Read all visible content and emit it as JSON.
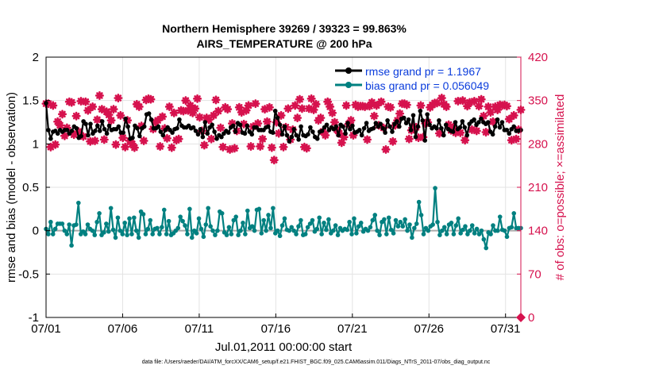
{
  "chart_data": {
    "type": "line",
    "title_line1": "Northern Hemisphere 39269 / 39323 = 99.863%",
    "title_line2": "AIRS_TEMPERATURE @ 200 hPa",
    "xlabel": "Jul.01,2011 00:00:00 start",
    "ylabel_left": "rmse and bias (model - observation)",
    "ylabel_right": "# of obs: o=possible; ×=assimilated",
    "x_tick_labels": [
      "07/01",
      "07/06",
      "07/11",
      "07/16",
      "07/21",
      "07/26",
      "07/31"
    ],
    "y_left_ticks": [
      "2",
      "1.5",
      "1",
      "0.5",
      "0",
      "-0.5",
      "-1"
    ],
    "y_right_ticks": [
      "420",
      "350",
      "280",
      "210",
      "140",
      "70",
      "0"
    ],
    "y_left_range": [
      -1,
      2
    ],
    "y_right_range": [
      0,
      420
    ],
    "x_range_days": [
      0,
      31
    ],
    "zero_line": 0,
    "series": [
      {
        "name": "rmse",
        "legend_label": "rmse grand pr = 1.1967",
        "color": "#000000",
        "values": [
          1.47,
          1.16,
          1.06,
          1.14,
          1.15,
          1.12,
          1.16,
          1.14,
          1.16,
          1.16,
          1.12,
          1.15,
          1.2,
          1.18,
          1.07,
          1.09,
          1.26,
          1.23,
          1.1,
          1.23,
          1.12,
          1.15,
          1.21,
          1.15,
          1.26,
          1.17,
          1.12,
          1.21,
          1.16,
          1.17,
          1.17,
          1.2,
          1.13,
          1.13,
          1.29,
          1.2,
          1.06,
          1.07,
          1.21,
          1.18,
          1.09,
          1.18,
          1.2,
          1.34,
          1.35,
          1.28,
          1.18,
          1.18,
          1.2,
          1.14,
          1.1,
          1.16,
          1.19,
          1.16,
          1.13,
          1.17,
          1.18,
          1.28,
          1.21,
          1.19,
          1.19,
          1.21,
          1.18,
          1.19,
          1.15,
          1.11,
          1.17,
          1.08,
          1.25,
          1.12,
          1.19,
          1.22,
          1.14,
          1.06,
          1.1,
          1.08,
          1.12,
          1.15,
          1.13,
          1.19,
          1.21,
          1.14,
          1.24,
          1.22,
          1.13,
          1.12,
          1.21,
          1.14,
          1.11,
          1.19,
          1.19,
          1.16,
          1.16,
          1.16,
          1.19,
          1.2,
          1.14,
          1.13,
          1.38,
          1.3,
          1.22,
          1.11,
          1.2,
          1.1,
          1.03,
          1.08,
          1.17,
          1.1,
          1.05,
          1.2,
          1.1,
          1.09,
          1.11,
          1.19,
          1.14,
          1.08,
          1.06,
          1.14,
          1.15,
          1.19,
          1.22,
          1.16,
          1.19,
          1.17,
          1.2,
          1.1,
          1.22,
          1.2,
          1.12,
          1.24,
          1.17,
          1.21,
          1.13,
          1.14,
          1.16,
          1.1,
          1.18,
          1.24,
          1.15,
          1.17,
          1.18,
          1.24,
          1.2,
          1.23,
          1.18,
          1.13,
          1.27,
          1.2,
          1.14,
          1.23,
          1.26,
          1.2,
          1.29,
          1.3,
          1.24,
          1.28,
          1.16,
          1.33,
          1.08,
          1.2,
          1.38,
          1.27,
          1.04,
          1.34,
          1.22,
          1.18,
          1.2,
          1.18,
          1.27,
          1.18,
          1.1,
          1.22,
          1.17,
          1.15,
          1.14,
          1.25,
          1.17,
          1.19,
          1.26,
          1.19,
          1.1,
          1.23,
          1.26,
          1.28,
          1.22,
          1.25,
          1.29,
          1.25,
          1.23,
          1.25,
          1.14,
          1.11,
          1.2,
          1.28,
          1.19,
          1.25,
          1.16,
          1.16,
          1.12,
          1.17,
          1.2,
          1.15,
          1.15,
          1.16
        ]
      },
      {
        "name": "bias",
        "legend_label": "bias grand pr = 0.056049",
        "color": "#008080",
        "values": [
          0.02,
          -0.04,
          0.1,
          -0.04,
          0.02,
          0.08,
          0.08,
          0.08,
          0.0,
          -0.04,
          0.07,
          -0.17,
          0.06,
          0.07,
          0.32,
          -0.04,
          -0.01,
          -0.04,
          0.07,
          0.02,
          0.0,
          -0.05,
          0.1,
          0.2,
          -0.05,
          -0.02,
          0.08,
          -0.01,
          0.26,
          0.01,
          -0.08,
          0.15,
          0.0,
          -0.04,
          0.09,
          -0.05,
          0.14,
          -0.04,
          0.15,
          0.0,
          -0.08,
          0.22,
          0.19,
          -0.04,
          0.02,
          0.12,
          -0.04,
          0.02,
          0.03,
          -0.04,
          0.04,
          0.24,
          -0.04,
          0.11,
          -0.05,
          -0.03,
          0.0,
          0.03,
          0.16,
          0.11,
          0.06,
          -0.04,
          0.25,
          -0.08,
          0.0,
          -0.03,
          0.14,
          0.02,
          -0.07,
          0.07,
          0.26,
          0.05,
          0.0,
          -0.05,
          0.0,
          0.22,
          0.2,
          -0.02,
          -0.05,
          0.04,
          -0.04,
          0.12,
          0.16,
          -0.05,
          0.0,
          0.09,
          -0.04,
          0.23,
          0.03,
          0.05,
          0.0,
          0.24,
          0.25,
          -0.03,
          0.12,
          0.0,
          0.18,
          0.03,
          0.26,
          -0.03,
          0.0,
          -0.06,
          0.06,
          0.14,
          0.01,
          0.0,
          0.04,
          0.0,
          -0.04,
          0.05,
          0.12,
          -0.05,
          -0.04,
          0.04,
          0.08,
          0.12,
          -0.01,
          0.02,
          0.15,
          -0.04,
          0.09,
          0.01,
          0.13,
          -0.03,
          0.0,
          0.06,
          -0.05,
          0.03,
          0.0,
          0.02,
          0.01,
          0.1,
          -0.04,
          0.14,
          -0.03,
          0.05,
          0.09,
          -0.01,
          0.02,
          0.0,
          0.04,
          0.12,
          0.18,
          0.0,
          -0.05,
          0.1,
          0.13,
          -0.04,
          0.15,
          0.01,
          -0.03,
          0.12,
          0.05,
          0.1,
          0.05,
          0.13,
          0.0,
          0.07,
          -0.08,
          0.03,
          0.08,
          0.33,
          0.18,
          -0.04,
          0.03,
          0.0,
          0.05,
          0.07,
          0.49,
          0.1,
          -0.05,
          0.0,
          0.04,
          -0.04,
          0.07,
          0.09,
          -0.04,
          0.06,
          0.14,
          -0.03,
          0.01,
          0.05,
          -0.04,
          0.0,
          0.06,
          -0.03,
          0.02,
          -0.04,
          0.0,
          -0.1,
          -0.2,
          -0.02,
          -0.04,
          0.06,
          0.0,
          0.0,
          0.16,
          0.01,
          0.0,
          -0.07,
          0.03,
          0.04,
          0.2,
          0.03,
          0.03,
          0.03
        ]
      },
      {
        "name": "# of obs possible/assimilated",
        "axis": "right",
        "color": "#d6124e",
        "marker": "star",
        "values": [
          345,
          345,
          275,
          342,
          279,
          316,
          310,
          328,
          293,
          306,
          348,
          347,
          295,
          325,
          300,
          349,
          292,
          348,
          334,
          284,
          340,
          285,
          319,
          358,
          336,
          287,
          332,
          327,
          318,
          336,
          279,
          354,
          326,
          290,
          275,
          318,
          285,
          280,
          274,
          344,
          340,
          309,
          285,
          351,
          353,
          352,
          304,
          315,
          318,
          276,
          324,
          305,
          289,
          340,
          274,
          330,
          286,
          288,
          334,
          333,
          350,
          334,
          342,
          330,
          337,
          353,
          323,
          301,
          278,
          322,
          319,
          288,
          326,
          351,
          333,
          306,
          275,
          339,
          336,
          271,
          313,
          273,
          301,
          339,
          331,
          312,
          334,
          342,
          276,
          308,
          345,
          313,
          276,
          288,
          336,
          316,
          339,
          274,
          254,
          315,
          297,
          326,
          275,
          307,
          337,
          287,
          303,
          342,
          322,
          352,
          337,
          275,
          273,
          337,
          353,
          335,
          344,
          318,
          322,
          300,
          294,
          348,
          340,
          330,
          315,
          303,
          297,
          282,
          291,
          342,
          312,
          318,
          294,
          343,
          340,
          341,
          341,
          340,
          287,
          341,
          347,
          325,
          342,
          310,
          348,
          306,
          271,
          340,
          339,
          284,
          310,
          318,
          329,
          345,
          345,
          343,
          288,
          302,
          308,
          307,
          290,
          342,
          291,
          313,
          315,
          339,
          343,
          346,
          346,
          297,
          354,
          344,
          340,
          311,
          302,
          307,
          298,
          349,
          298,
          350,
          286,
          341,
          347,
          303,
          349,
          301,
          341,
          352,
          325,
          299,
          340,
          331,
          316,
          340,
          335,
          343,
          342,
          343,
          341,
          320,
          286,
          326,
          288,
          303,
          335
        ]
      }
    ]
  },
  "footnote": "data file: /Users/raeder/DAI/ATM_forcXX/CAM6_setup/f.e21.FHIST_BGC.f09_025.CAM6assim.011/Diags_NTrS_2011-07/obs_diag_output.nc",
  "colors": {
    "rmse": "#000000",
    "bias": "#008080",
    "obs": "#d6124e",
    "axis_right": "#d6124e",
    "legend_text": "#0a3cdc"
  }
}
